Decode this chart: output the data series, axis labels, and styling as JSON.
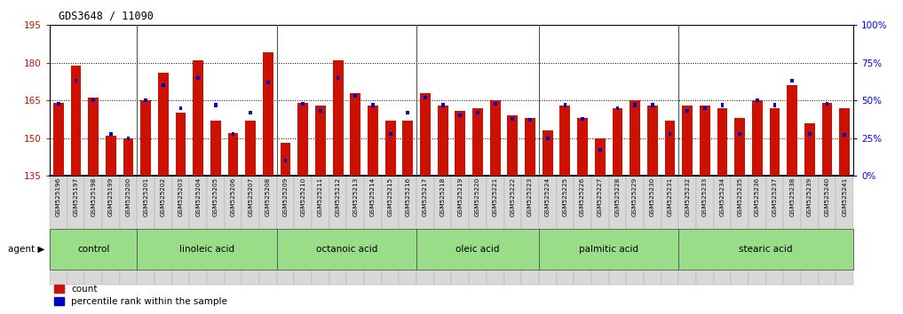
{
  "title": "GDS3648 / 11090",
  "ylim_left": [
    135,
    195
  ],
  "ylim_right": [
    0,
    100
  ],
  "yticks_left": [
    135,
    150,
    165,
    180,
    195
  ],
  "yticks_right": [
    0,
    25,
    50,
    75,
    100
  ],
  "ytick_labels_right": [
    "0%",
    "25%",
    "50%",
    "75%",
    "100%"
  ],
  "bar_color": "#cc1100",
  "dot_color": "#0000cc",
  "samples": [
    "GSM525196",
    "GSM525197",
    "GSM525198",
    "GSM525199",
    "GSM525200",
    "GSM525201",
    "GSM525202",
    "GSM525203",
    "GSM525204",
    "GSM525205",
    "GSM525206",
    "GSM525207",
    "GSM525208",
    "GSM525209",
    "GSM525210",
    "GSM525211",
    "GSM525212",
    "GSM525213",
    "GSM525214",
    "GSM525215",
    "GSM525216",
    "GSM525217",
    "GSM525218",
    "GSM525219",
    "GSM525220",
    "GSM525221",
    "GSM525222",
    "GSM525223",
    "GSM525224",
    "GSM525225",
    "GSM525226",
    "GSM525227",
    "GSM525228",
    "GSM525229",
    "GSM525230",
    "GSM525231",
    "GSM525232",
    "GSM525233",
    "GSM525234",
    "GSM525235",
    "GSM525236",
    "GSM525237",
    "GSM525238",
    "GSM525239",
    "GSM525240",
    "GSM525241"
  ],
  "red_values": [
    164,
    179,
    166,
    151,
    150,
    165,
    176,
    160,
    181,
    157,
    152,
    157,
    184,
    148,
    164,
    163,
    181,
    168,
    163,
    157,
    157,
    168,
    163,
    161,
    162,
    165,
    159,
    158,
    153,
    163,
    158,
    150,
    162,
    165,
    163,
    157,
    163,
    163,
    162,
    158,
    165,
    162,
    171,
    156,
    164,
    162
  ],
  "blue_values_pct": [
    48,
    63,
    50,
    28,
    25,
    50,
    60,
    45,
    65,
    47,
    28,
    42,
    62,
    10,
    48,
    43,
    65,
    53,
    47,
    28,
    42,
    52,
    47,
    40,
    42,
    48,
    38,
    37,
    25,
    47,
    38,
    17,
    45,
    47,
    47,
    28,
    43,
    45,
    47,
    28,
    50,
    47,
    63,
    28,
    48,
    27
  ],
  "groups": [
    {
      "label": "control",
      "start": 0,
      "end": 4
    },
    {
      "label": "linoleic acid",
      "start": 5,
      "end": 12
    },
    {
      "label": "octanoic acid",
      "start": 13,
      "end": 20
    },
    {
      "label": "oleic acid",
      "start": 21,
      "end": 27
    },
    {
      "label": "palmitic acid",
      "start": 28,
      "end": 35
    },
    {
      "label": "stearic acid",
      "start": 36,
      "end": 45
    }
  ],
  "agent_label": "agent",
  "legend_count": "count",
  "legend_pct": "percentile rank within the sample"
}
